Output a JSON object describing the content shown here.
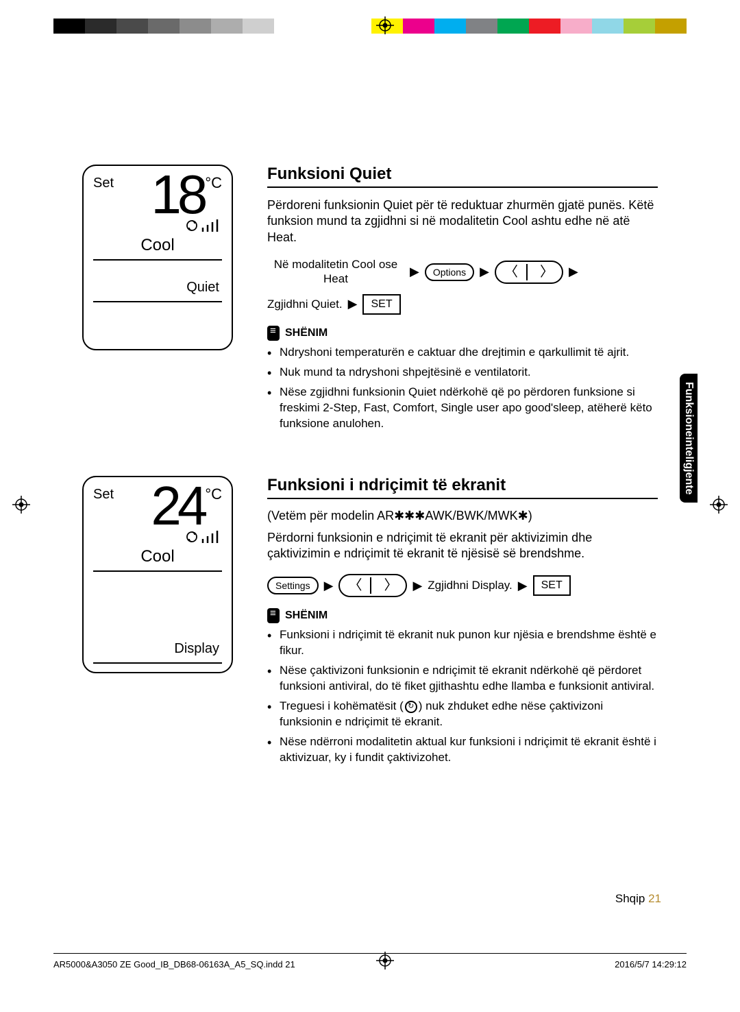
{
  "colorbar": {
    "left": [
      "#000000",
      "#2b2b2b",
      "#4a4a4a",
      "#6a6a6a",
      "#8c8c8c",
      "#adadad",
      "#cfcfcf",
      "#ffffff"
    ],
    "right": [
      "#fff200",
      "#ec008c",
      "#00aeef",
      "#808285",
      "#00a651",
      "#ed1c24",
      "#f7adc9",
      "#90d7e7",
      "#a6ce39",
      "#c4a000"
    ]
  },
  "section1": {
    "title": "Funksioni Quiet",
    "intro": "Përdoreni funksionin Quiet për të reduktuar zhurmën gjatë punës. Këtë funksion mund ta zgjidhni si në modalitetin Cool ashtu edhe në atë Heat.",
    "display": {
      "set": "Set",
      "temp": "18",
      "unit": "°C",
      "mode": "Cool",
      "sub": "Quiet"
    },
    "step1_text": "Në modalitetin Cool ose Heat",
    "options_btn": "Options",
    "step2_text": "Zgjidhni Quiet.",
    "set_btn": "SET",
    "note_label": "SHËNIM",
    "notes": [
      "Ndryshoni temperaturën e caktuar dhe drejtimin e qarkullimit të ajrit.",
      "Nuk mund ta ndryshoni shpejtësinë e ventilatorit.",
      "Nëse zgjidhni funksionin Quiet ndërkohë që po përdoren funksione si freskimi 2-Step, Fast, Comfort, Single user apo good'sleep, atëherë këto funksione anulohen."
    ]
  },
  "section2": {
    "title": "Funksioni i ndriçimit të ekranit",
    "subtitle": "(Vetëm për modelin AR✱✱✱AWK/BWK/MWK✱)",
    "intro": "Përdorni funksionin e ndriçimit të ekranit për aktivizimin dhe çaktivizimin e ndriçimit të ekranit të njësisë së brendshme.",
    "display": {
      "set": "Set",
      "temp": "24",
      "unit": "°C",
      "mode": "Cool",
      "sub": "Display"
    },
    "settings_btn": "Settings",
    "step_text": "Zgjidhni Display.",
    "set_btn": "SET",
    "note_label": "SHËNIM",
    "notes": [
      "Funksioni i ndriçimit të ekranit nuk punon kur njësia e brendshme është e fikur.",
      "Nëse çaktivizoni funksionin e ndriçimit të ekranit ndërkohë që përdoret funksioni antiviral, do të fiket gjithashtu edhe llamba e funksionit antiviral.",
      "Treguesi i kohëmatësit (⏱) nuk zhduket edhe nëse çaktivizoni funksionin e ndriçimit të ekranit.",
      "Nëse ndërroni modalitetin aktual kur funksioni i ndriçimit të ekranit është i aktivizuar, ky i fundit çaktivizohet."
    ]
  },
  "side_tab": "Funksioneinteligjente",
  "footer": {
    "lang": "Shqip",
    "page": "21"
  },
  "print_footer": {
    "file": "AR5000&A3050 ZE Good_IB_DB68-06163A_A5_SQ.indd   21",
    "timestamp": "2016/5/7   14:29:12"
  }
}
